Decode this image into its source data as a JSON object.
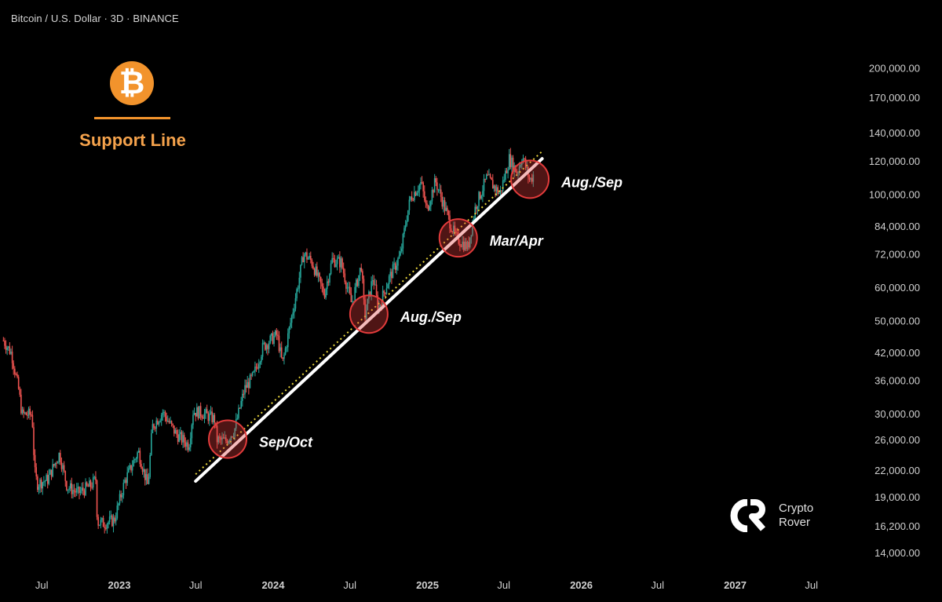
{
  "header": {
    "symbol_title": "Bitcoin / U.S. Dollar · 3D · BINANCE"
  },
  "badge": {
    "icon": "bitcoin-icon",
    "glyph": "₿",
    "color": "#f2932c",
    "title": "Support Line"
  },
  "watermark": {
    "logo_text": "CR",
    "line1": "Crypto",
    "line2": "Rover"
  },
  "chart_data": {
    "type": "candlestick",
    "scale": "log",
    "grid": false,
    "up_color": "#26a69a",
    "down_color": "#ef5350",
    "support_line_color": "#ffffff",
    "dotted_line_color": "#e6d23a",
    "highlight_color": "#e23b3b",
    "y_ticks": [
      {
        "value": 200000,
        "label": "200,000.00"
      },
      {
        "value": 170000,
        "label": "170,000.00"
      },
      {
        "value": 140000,
        "label": "140,000.00"
      },
      {
        "value": 120000,
        "label": "120,000.00"
      },
      {
        "value": 100000,
        "label": "100,000.00"
      },
      {
        "value": 84000,
        "label": "84,000.00"
      },
      {
        "value": 72000,
        "label": "72,000.00"
      },
      {
        "value": 60000,
        "label": "60,000.00"
      },
      {
        "value": 50000,
        "label": "50,000.00"
      },
      {
        "value": 42000,
        "label": "42,000.00"
      },
      {
        "value": 36000,
        "label": "36,000.00"
      },
      {
        "value": 30000,
        "label": "30,000.00"
      },
      {
        "value": 26000,
        "label": "26,000.00"
      },
      {
        "value": 22000,
        "label": "22,000.00"
      },
      {
        "value": 19000,
        "label": "19,000.00"
      },
      {
        "value": 16200,
        "label": "16,200.00"
      },
      {
        "value": 14000,
        "label": "14,000.00"
      }
    ],
    "x_ticks": [
      {
        "date": "2022-07-01",
        "label": "Jul",
        "bold": false
      },
      {
        "date": "2023-01-01",
        "label": "2023",
        "bold": true
      },
      {
        "date": "2023-07-01",
        "label": "Jul",
        "bold": false
      },
      {
        "date": "2024-01-01",
        "label": "2024",
        "bold": true
      },
      {
        "date": "2024-07-01",
        "label": "Jul",
        "bold": false
      },
      {
        "date": "2025-01-01",
        "label": "2025",
        "bold": true
      },
      {
        "date": "2025-07-01",
        "label": "Jul",
        "bold": false
      },
      {
        "date": "2026-01-01",
        "label": "2026",
        "bold": true
      },
      {
        "date": "2026-07-01",
        "label": "Jul",
        "bold": false
      },
      {
        "date": "2027-01-01",
        "label": "2027",
        "bold": true
      },
      {
        "date": "2027-07-01",
        "label": "Jul",
        "bold": false
      }
    ],
    "price_path": [
      [
        "2022-04-01",
        45000
      ],
      [
        "2022-04-20",
        42000
      ],
      [
        "2022-05-08",
        34000
      ],
      [
        "2022-05-15",
        30000
      ],
      [
        "2022-06-08",
        30000
      ],
      [
        "2022-06-14",
        22000
      ],
      [
        "2022-06-20",
        20500
      ],
      [
        "2022-07-15",
        21000
      ],
      [
        "2022-08-12",
        24200
      ],
      [
        "2022-08-30",
        20200
      ],
      [
        "2022-09-25",
        19500
      ],
      [
        "2022-10-25",
        20300
      ],
      [
        "2022-11-06",
        21000
      ],
      [
        "2022-11-10",
        16600
      ],
      [
        "2022-11-25",
        16500
      ],
      [
        "2022-12-20",
        16800
      ],
      [
        "2023-01-14",
        20800
      ],
      [
        "2023-02-15",
        24500
      ],
      [
        "2023-03-10",
        20200
      ],
      [
        "2023-03-20",
        28000
      ],
      [
        "2023-04-14",
        30400
      ],
      [
        "2023-05-15",
        27000
      ],
      [
        "2023-06-15",
        25300
      ],
      [
        "2023-06-25",
        30500
      ],
      [
        "2023-07-15",
        30300
      ],
      [
        "2023-08-15",
        29200
      ],
      [
        "2023-08-20",
        26100
      ],
      [
        "2023-09-10",
        25900
      ],
      [
        "2023-10-01",
        27500
      ],
      [
        "2023-10-25",
        34500
      ],
      [
        "2023-11-15",
        37000
      ],
      [
        "2023-12-08",
        43500
      ],
      [
        "2024-01-10",
        46500
      ],
      [
        "2024-01-23",
        39500
      ],
      [
        "2024-02-15",
        52000
      ],
      [
        "2024-03-01",
        62000
      ],
      [
        "2024-03-13",
        72500
      ],
      [
        "2024-04-01",
        69500
      ],
      [
        "2024-05-01",
        58000
      ],
      [
        "2024-05-20",
        70000
      ],
      [
        "2024-06-10",
        69000
      ],
      [
        "2024-07-05",
        55000
      ],
      [
        "2024-07-28",
        68000
      ],
      [
        "2024-08-05",
        51000
      ],
      [
        "2024-08-25",
        64000
      ],
      [
        "2024-09-06",
        53500
      ],
      [
        "2024-10-01",
        63000
      ],
      [
        "2024-10-29",
        72000
      ],
      [
        "2024-11-12",
        88000
      ],
      [
        "2024-11-22",
        98500
      ],
      [
        "2024-12-17",
        107000
      ],
      [
        "2024-12-30",
        92000
      ],
      [
        "2025-01-20",
        108000
      ],
      [
        "2025-02-25",
        85000
      ],
      [
        "2025-03-10",
        79000
      ],
      [
        "2025-04-07",
        75000
      ],
      [
        "2025-04-25",
        94000
      ],
      [
        "2025-05-22",
        110000
      ],
      [
        "2025-06-22",
        100500
      ],
      [
        "2025-07-14",
        122000
      ],
      [
        "2025-08-02",
        113000
      ],
      [
        "2025-08-14",
        124000
      ],
      [
        "2025-09-01",
        108000
      ],
      [
        "2025-09-10",
        112000
      ]
    ],
    "support_line": {
      "start": [
        "2023-07-01",
        20800
      ],
      "end": [
        "2025-09-30",
        122000
      ]
    },
    "dotted_line": {
      "start": [
        "2023-07-01",
        21600
      ],
      "end": [
        "2025-09-30",
        127000
      ]
    },
    "highlights": [
      {
        "date": "2023-09-15",
        "price": 26200,
        "label": "Sep/Oct"
      },
      {
        "date": "2024-08-15",
        "price": 52000,
        "label": "Aug./Sep"
      },
      {
        "date": "2025-03-15",
        "price": 79000,
        "label": "Mar/Apr"
      },
      {
        "date": "2025-09-01",
        "price": 109000,
        "label": "Aug./Sep"
      }
    ]
  }
}
